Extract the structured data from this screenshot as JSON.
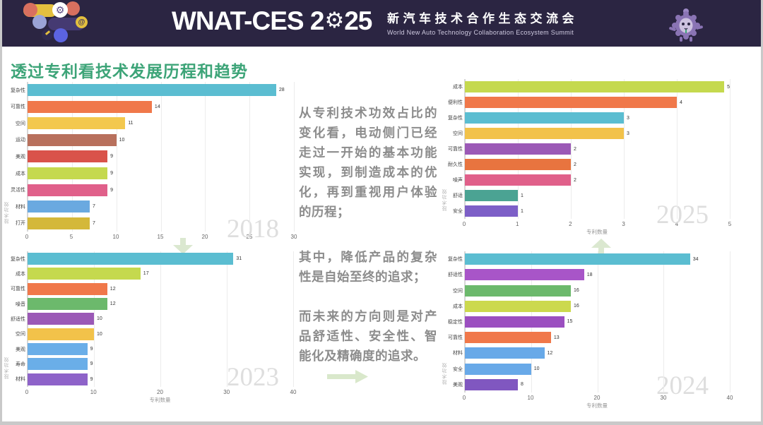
{
  "header": {
    "title_en_prefix": "WNAT-CES 2",
    "title_en_suffix": "25",
    "title_cn": "新汽车技术合作生态交流会",
    "subtitle_en": "World New Auto Technology Collaboration Ecosystem Summit",
    "bg_color": "#2b2542"
  },
  "page": {
    "title": "透过专利看技术发展历程和趋势",
    "title_color": "#3da478"
  },
  "narrative": {
    "paragraphs": [
      "从专利技术功效占比的变化看，电动侧门已经走过一开始的基本功能实现，到制造成本的优化，再到重视用户体验的历程；",
      "其中，降低产品的复杂性是自始至终的追求；",
      "而未来的方向则是对产品舒适性、安全性、智能化及精确度的追求。"
    ],
    "text_color": "#8c8c8c"
  },
  "chart_data": [
    {
      "id": "chart-2018",
      "type": "bar",
      "orientation": "horizontal",
      "watermark": "2018",
      "xlabel": "",
      "ylabel": "技术功效",
      "xlim": [
        0,
        30
      ],
      "xticks": [
        0,
        5,
        10,
        15,
        20,
        25,
        30
      ],
      "grid": true,
      "categories": [
        "复杂性",
        "可靠性",
        "空间",
        "运动",
        "美观",
        "成本",
        "灵活性",
        "材料",
        "打开"
      ],
      "values": [
        28,
        14,
        11,
        10,
        9,
        9,
        9,
        7,
        7
      ],
      "colors": [
        "#5bbdd1",
        "#f0784a",
        "#f3c84e",
        "#b8705c",
        "#d9534a",
        "#c5d94e",
        "#e0608a",
        "#6aa9e0",
        "#d4b83a"
      ]
    },
    {
      "id": "chart-2023",
      "type": "bar",
      "orientation": "horizontal",
      "watermark": "2023",
      "xlabel": "专利数量",
      "ylabel": "技术功效",
      "xlim": [
        0,
        40
      ],
      "xticks": [
        0,
        10,
        20,
        30,
        40
      ],
      "grid": true,
      "categories": [
        "复杂性",
        "成本",
        "可靠性",
        "噪音",
        "舒适性",
        "空间",
        "美观",
        "寿命",
        "材料"
      ],
      "values": [
        31,
        17,
        12,
        12,
        10,
        10,
        9,
        9,
        9
      ],
      "colors": [
        "#5bbdd1",
        "#c5d94e",
        "#f0784a",
        "#6cb96c",
        "#9b59b6",
        "#f2c24a",
        "#6aaee8",
        "#6aaee8",
        "#8e63c9"
      ]
    },
    {
      "id": "chart-2025",
      "type": "bar",
      "orientation": "horizontal",
      "watermark": "2025",
      "xlabel": "专利数量",
      "ylabel": "技术功效",
      "xlim": [
        0,
        5
      ],
      "xticks": [
        0,
        1,
        2,
        3,
        4,
        5
      ],
      "grid": true,
      "categories": [
        "成本",
        "便利性",
        "复杂性",
        "空间",
        "可靠性",
        "耐久性",
        "噪声",
        "舒适",
        "安全"
      ],
      "values": [
        5,
        4,
        3,
        3,
        2,
        2,
        2,
        1,
        1
      ],
      "colors": [
        "#c5d94e",
        "#f0784a",
        "#5bbdd1",
        "#f2c24a",
        "#9b59b6",
        "#e8743f",
        "#e0608a",
        "#4ba393",
        "#7d5fc7"
      ]
    },
    {
      "id": "chart-2024",
      "type": "bar",
      "orientation": "horizontal",
      "watermark": "2024",
      "xlabel": "专利数量",
      "ylabel": "技术功效",
      "xlim": [
        0,
        40
      ],
      "xticks": [
        0,
        10,
        20,
        30,
        40
      ],
      "grid": true,
      "categories": [
        "复杂性",
        "舒适性",
        "空间",
        "成本",
        "稳定性",
        "可靠性",
        "材料",
        "安全",
        "美观"
      ],
      "values": [
        34,
        18,
        16,
        16,
        15,
        13,
        12,
        10,
        8
      ],
      "colors": [
        "#5bbdd1",
        "#a855c8",
        "#6cb96c",
        "#ccd94e",
        "#9b4fc0",
        "#f0784a",
        "#68a9e8",
        "#68a9e8",
        "#8057c0"
      ]
    }
  ],
  "decor": {
    "arrow_color": "#dbe8d0",
    "watermark_color": "#dedede"
  }
}
